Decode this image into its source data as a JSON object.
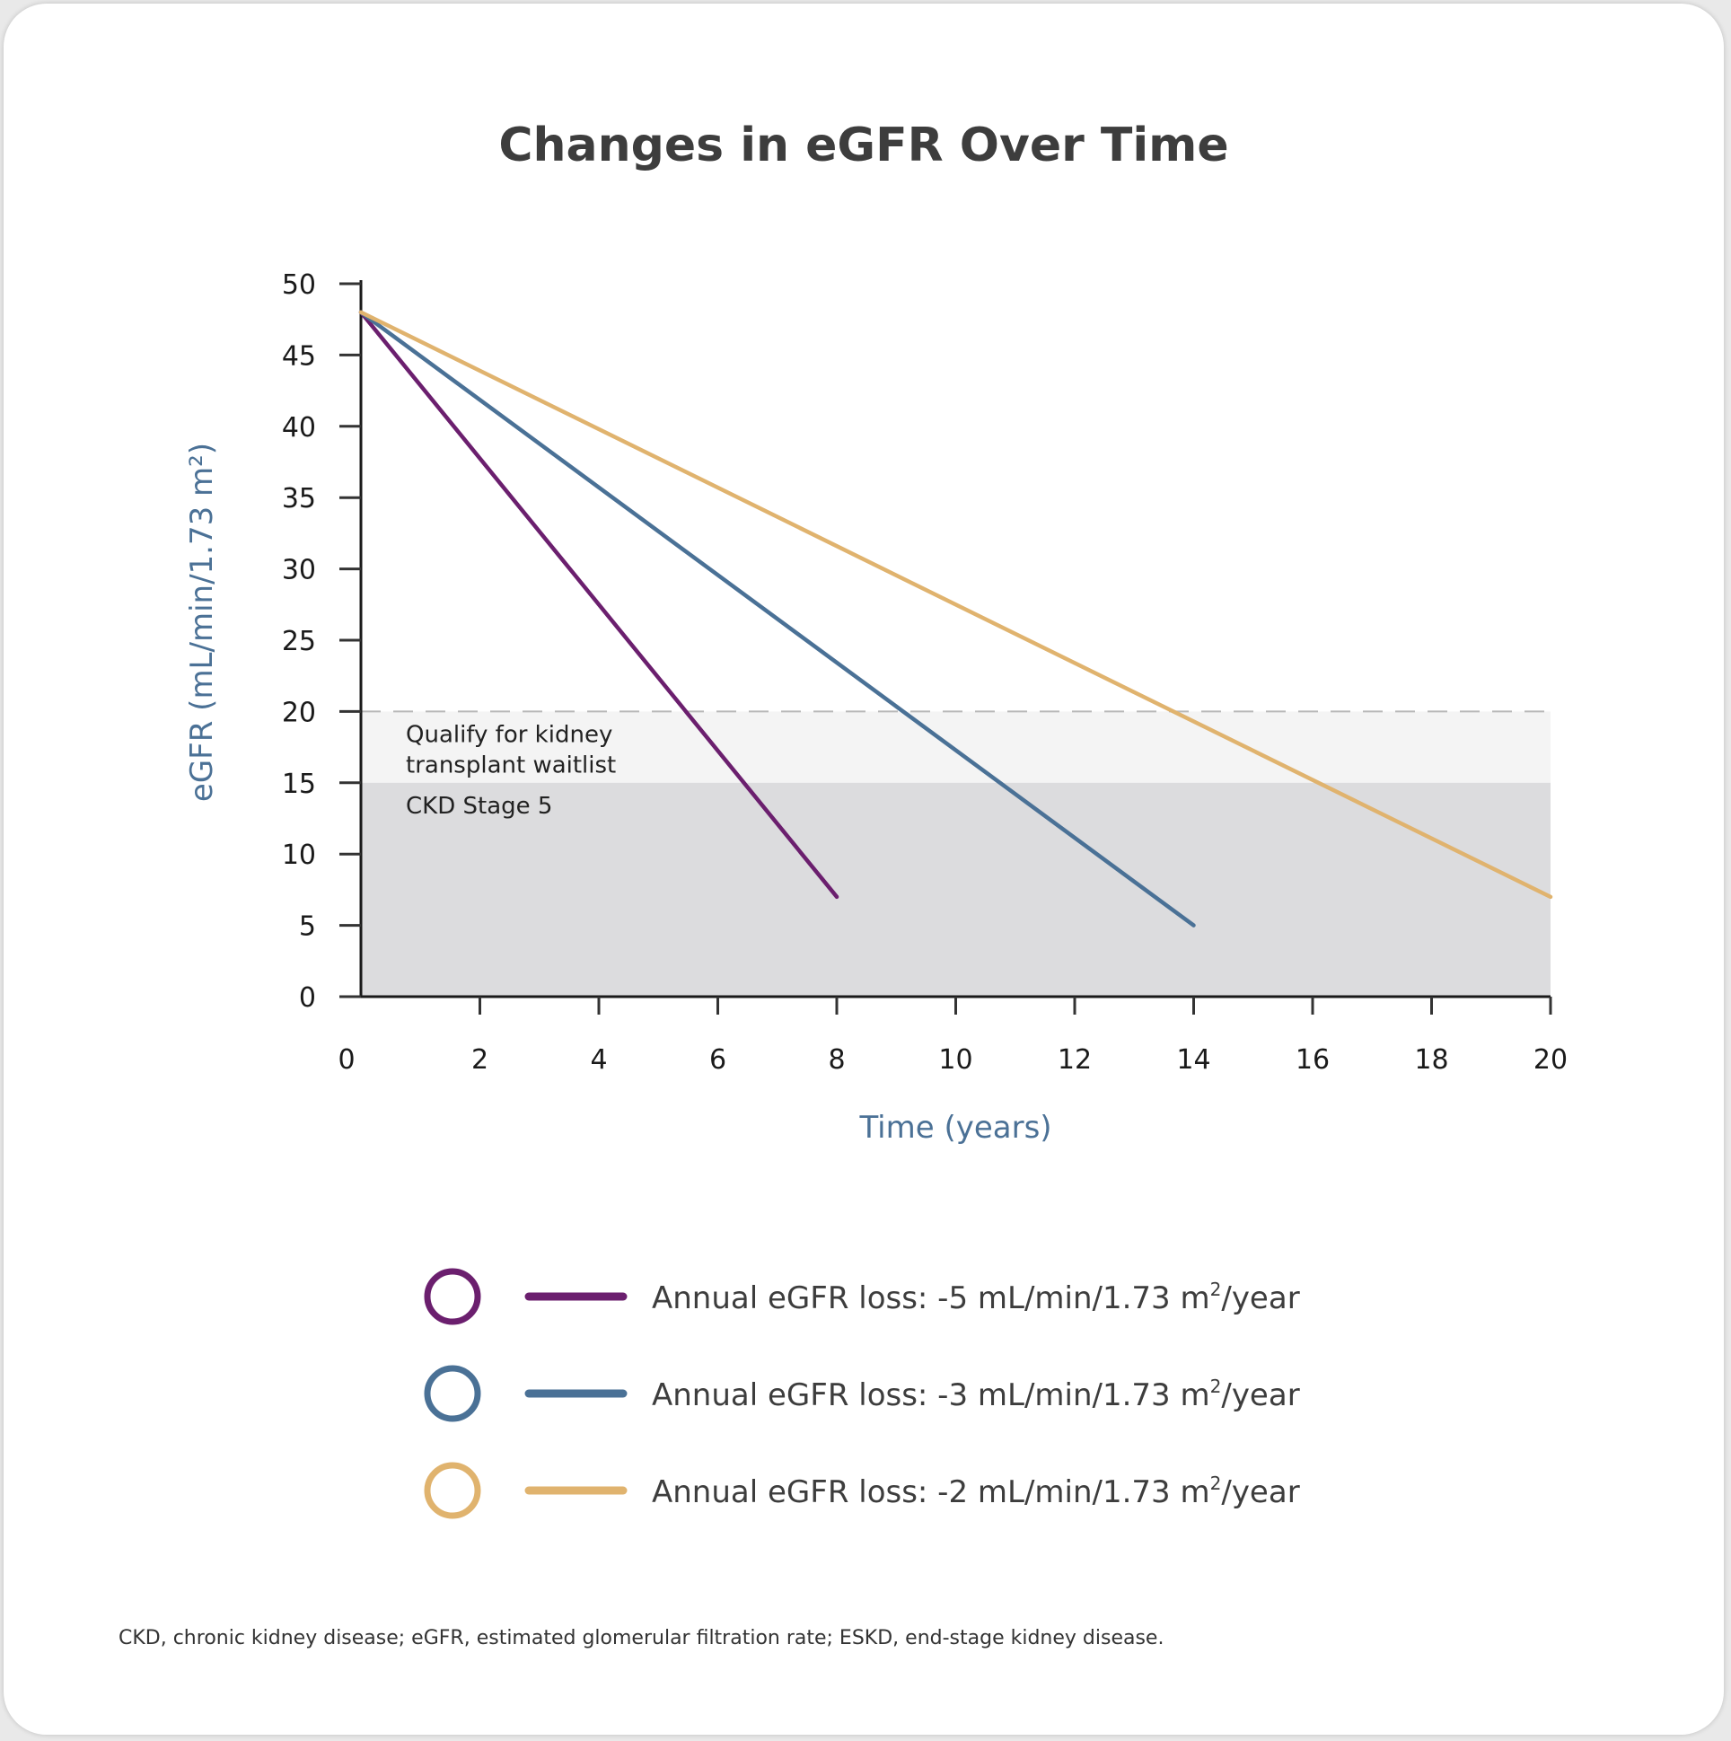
{
  "chart_data": {
    "type": "line",
    "title": "Changes in eGFR Over Time",
    "xlabel": "Time (years)",
    "ylabel": "eGFR (mL/min/1.73 m²)",
    "xlim": [
      0,
      20
    ],
    "ylim": [
      0,
      50
    ],
    "x_ticks": [
      "0",
      "2",
      "4",
      "6",
      "8",
      "10",
      "12",
      "14",
      "16",
      "18",
      "20"
    ],
    "y_ticks": [
      "0",
      "5",
      "10",
      "15",
      "20",
      "25",
      "30",
      "35",
      "40",
      "45",
      "50"
    ],
    "regions": [
      {
        "label_lines": [
          "Qualify for kidney",
          "transplant waitlist"
        ],
        "y_range": [
          15,
          20
        ],
        "color": "#f4f4f4",
        "top_border": "dashed",
        "border_color": "#b8b8b8"
      },
      {
        "label_lines": [
          "CKD Stage 5"
        ],
        "y_range": [
          0,
          15
        ],
        "color": "#dcdcde"
      }
    ],
    "series": [
      {
        "name": "Annual eGFR loss: -5 mL/min/1.73 m²/year",
        "legend_text": "Annual eGFR loss: -5 mL/min/1.73 m",
        "legend_sup": "2",
        "legend_tail": "/year",
        "color": "#6b1f6e",
        "points": [
          [
            0,
            48
          ],
          [
            8,
            7
          ]
        ]
      },
      {
        "name": "Annual eGFR loss: -3 mL/min/1.73 m²/year",
        "legend_text": "Annual eGFR loss: -3 mL/min/1.73 m",
        "legend_sup": "2",
        "legend_tail": "/year",
        "color": "#4a7196",
        "points": [
          [
            0,
            48
          ],
          [
            14,
            5
          ]
        ]
      },
      {
        "name": "Annual eGFR loss: -2 mL/min/1.73 m²/year",
        "legend_text": "Annual eGFR loss: -2 mL/min/1.73 m",
        "legend_sup": "2",
        "legend_tail": "/year",
        "color": "#e0b36e",
        "points": [
          [
            0,
            48
          ],
          [
            20,
            7
          ]
        ]
      }
    ],
    "legend_position": "bottom",
    "grid": false
  },
  "footnote": "CKD, chronic kidney disease; eGFR, estimated glomerular filtration rate; ESKD, end-stage kidney disease."
}
